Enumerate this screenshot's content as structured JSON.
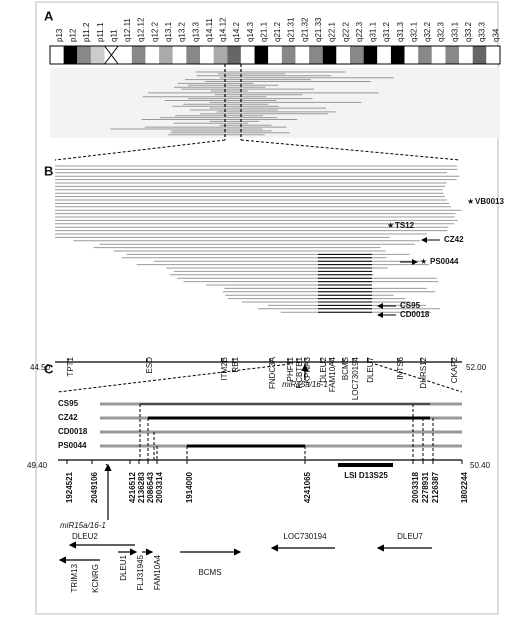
{
  "panels": [
    "A",
    "B",
    "C"
  ],
  "panel_a": {
    "bands": [
      "p13",
      "p12",
      "p11.2",
      "p11.1",
      "q11",
      "q12.11",
      "q12.12",
      "q12.2",
      "q13.1",
      "q13.2",
      "q13.3",
      "q14.11",
      "q14.12",
      "q14.2",
      "q14.3",
      "q21.1",
      "q21.2",
      "q21.31",
      "q21.32",
      "q21.33",
      "q22.1",
      "q22.2",
      "q22.3",
      "q31.1",
      "q31.2",
      "q31.3",
      "q32.1",
      "q32.2",
      "q32.3",
      "q33.1",
      "q33.2",
      "q33.3",
      "q34"
    ]
  },
  "panel_b": {
    "cases": [
      "VB0013",
      "TS12",
      "CZ42",
      "PS0044",
      "CS95",
      "CD0018"
    ],
    "genes": [
      "TPT1",
      "ESD",
      "ITM2B",
      "RB1",
      "FNDC3A",
      "PHF11",
      "RCBTB1",
      "KPNA3",
      "DLEU2",
      "FAM10A4",
      "BCMS",
      "LOC730194",
      "DLEU7",
      "INTS6",
      "DHRS12",
      "CKAP2"
    ],
    "axis_start": "44.50",
    "axis_end": "52.00",
    "mirna": "miR15a/16-1"
  },
  "panel_c": {
    "samples": [
      "CS95",
      "CZ42",
      "CD0018",
      "PS0044"
    ],
    "axis_start": "49.40",
    "axis_end": "50.40",
    "coordinates": [
      "1924521",
      "2049106",
      "4216512",
      "2136283",
      "2086543",
      "2003314",
      "1914000",
      "4241065",
      "2003318",
      "2278931",
      "2126387",
      "1802244"
    ],
    "probe": "LSI D13S25",
    "mirna": "miR15a/16-1",
    "genes": [
      "DLEU2",
      "TRIM13",
      "KCNRG",
      "DLEU1",
      "FLJ31945",
      "FAM10A4",
      "BCMS",
      "LOC730194",
      "DLEU7"
    ]
  }
}
